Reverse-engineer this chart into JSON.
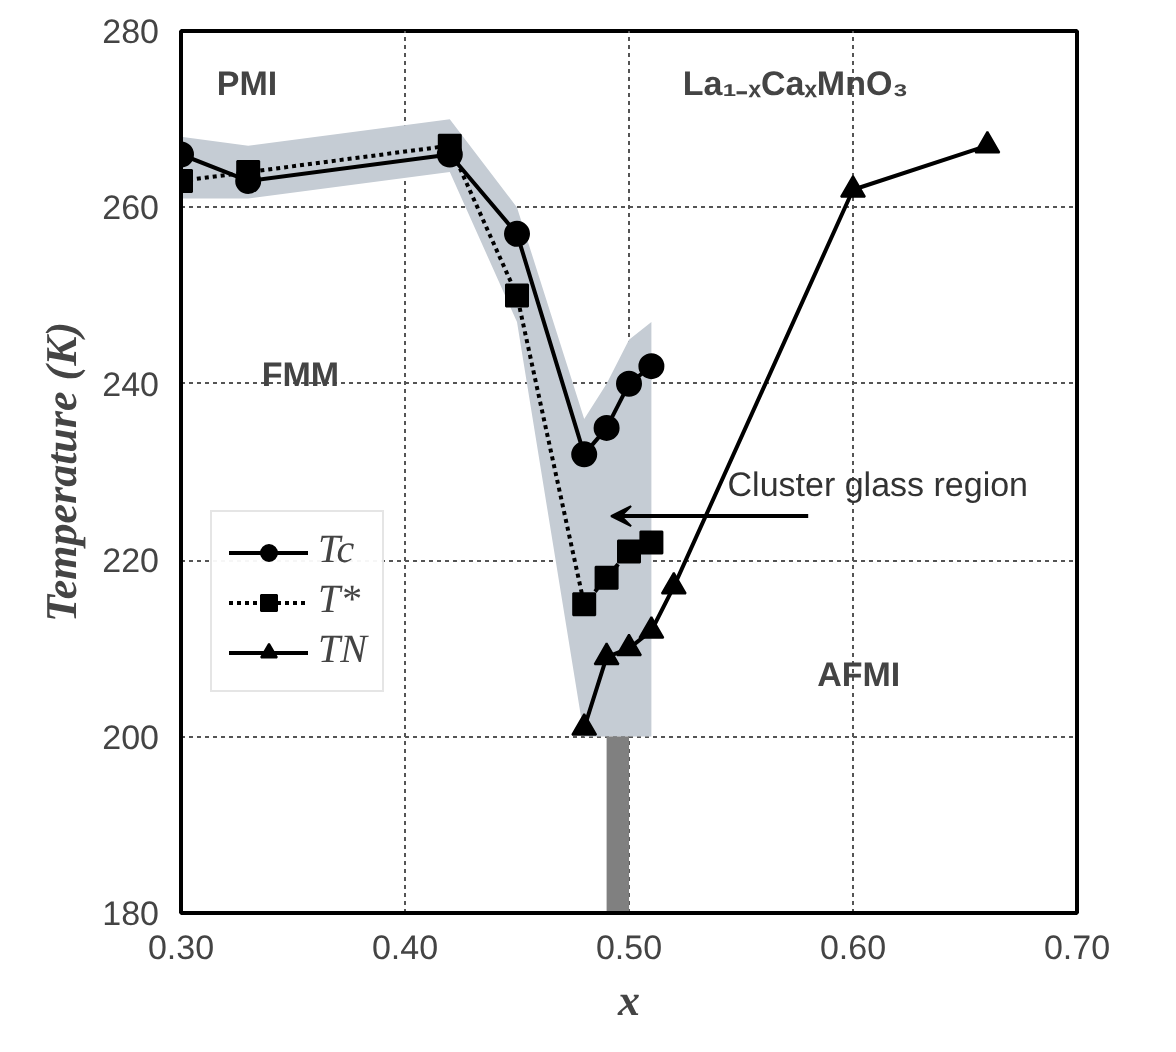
{
  "chart_data": {
    "type": "line",
    "xlabel": "x",
    "ylabel": "Temperature (K)",
    "xlim": [
      0.3,
      0.7
    ],
    "ylim": [
      180,
      280
    ],
    "xticks": [
      {
        "value": 0.3,
        "label": "0.30"
      },
      {
        "value": 0.4,
        "label": "0.40"
      },
      {
        "value": 0.5,
        "label": "0.50"
      },
      {
        "value": 0.6,
        "label": "0.60"
      },
      {
        "value": 0.7,
        "label": "0.70"
      }
    ],
    "yticks": [
      180,
      200,
      220,
      240,
      260,
      280
    ],
    "grid": true,
    "legend": "left",
    "series": [
      {
        "name": "Tc",
        "color": "#000000",
        "marker": "circle",
        "line_style": "solid",
        "x": [
          0.3,
          0.33,
          0.42,
          0.45,
          0.48,
          0.49,
          0.5,
          0.51
        ],
        "values": [
          266,
          263,
          266,
          257,
          232,
          235,
          240,
          242
        ],
        "lower": [
          261,
          261,
          264,
          247,
          200,
          200,
          200,
          200
        ],
        "upper": [
          268,
          267,
          270,
          260,
          236,
          240,
          245,
          247
        ]
      },
      {
        "name": "T*",
        "color": "#000000",
        "marker": "square",
        "line_style": "dotted",
        "x": [
          0.3,
          0.33,
          0.42,
          0.45,
          0.48,
          0.49,
          0.5,
          0.51
        ],
        "values": [
          263,
          264,
          267,
          250,
          215,
          218,
          221,
          222
        ]
      },
      {
        "name": "TN",
        "color": "#000000",
        "marker": "triangle",
        "line_style": "solid",
        "x": [
          0.48,
          0.49,
          0.5,
          0.51,
          0.52,
          0.6,
          0.66
        ],
        "values": [
          201,
          209,
          210,
          212,
          217,
          262,
          267
        ]
      },
      {
        "type": "bar",
        "color": "#808080",
        "x": [
          0.495
        ],
        "values": [
          200
        ]
      }
    ],
    "annotations": [
      "PMI",
      "FMM",
      "AFMI",
      "La₁₋ₓCaₓMnO₃",
      "Cluster glass region"
    ]
  }
}
